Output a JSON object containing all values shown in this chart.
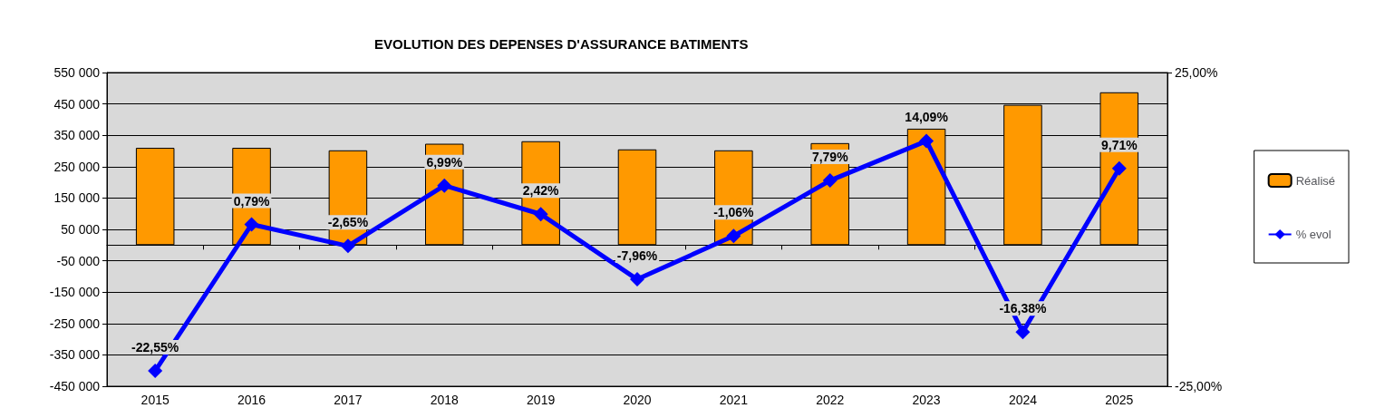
{
  "chart_data": {
    "type": "bar",
    "title": "EVOLUTION DES DEPENSES D'ASSURANCE BATIMENTS",
    "categories": [
      "2015",
      "2016",
      "2017",
      "2018",
      "2019",
      "2020",
      "2021",
      "2022",
      "2023",
      "2024",
      "2025"
    ],
    "series": [
      {
        "name": "Réalisé",
        "color": "#ff9900",
        "values": [
          310000,
          310000,
          302000,
          323000,
          331000,
          305000,
          302000,
          325000,
          371000,
          447000,
          487000
        ]
      },
      {
        "name": "% evol",
        "type": "line",
        "axis": "y2",
        "color": "#0000ff",
        "marker": "diamond",
        "values": [
          -22.55,
          0.79,
          -2.65,
          6.99,
          2.42,
          -7.96,
          -1.06,
          7.79,
          14.09,
          -16.38,
          9.71
        ],
        "value_labels": [
          "-22,55%",
          "0,79%",
          "-2,65%",
          "6,99%",
          "2,42%",
          "-7,96%",
          "-1,06%",
          "7,79%",
          "14,09%",
          "-16,38%",
          "9,71%"
        ]
      }
    ],
    "ylim": [
      -450000,
      550000
    ],
    "yticks": [
      {
        "value": -450000,
        "label": "-450 000"
      },
      {
        "value": -350000,
        "label": "-350 000"
      },
      {
        "value": -250000,
        "label": "-250 000"
      },
      {
        "value": -150000,
        "label": "-150 000"
      },
      {
        "value": -50000,
        "label": "-50 000"
      },
      {
        "value": 50000,
        "label": "50 000"
      },
      {
        "value": 150000,
        "label": "150 000"
      },
      {
        "value": 250000,
        "label": "250 000"
      },
      {
        "value": 350000,
        "label": "350 000"
      },
      {
        "value": 450000,
        "label": "450 000"
      },
      {
        "value": 550000,
        "label": "550 000"
      }
    ],
    "y2lim": [
      -25,
      25
    ],
    "y2ticks": [
      {
        "value": -25,
        "label": "-25,00%"
      },
      {
        "value": 25,
        "label": "25,00%"
      }
    ],
    "grid": "y",
    "legend": "right"
  }
}
